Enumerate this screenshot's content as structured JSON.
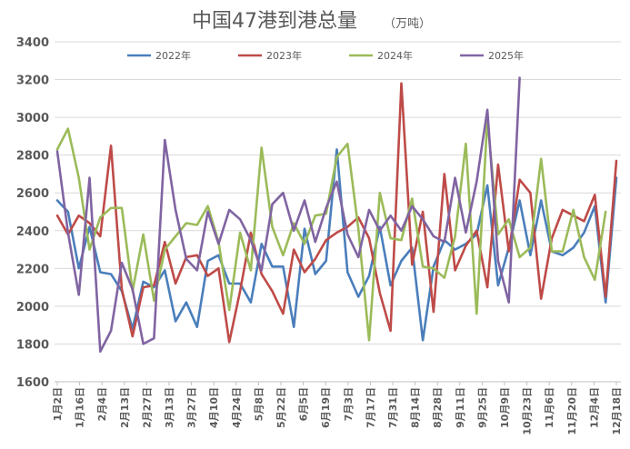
{
  "chart_data": {
    "type": "line",
    "title": "中国47港到港总量",
    "title_unit": "（万吨）",
    "xlabel": "",
    "ylabel": "",
    "ylim": [
      1600,
      3400
    ],
    "y_ticks": [
      1600,
      1800,
      2000,
      2200,
      2400,
      2600,
      2800,
      3000,
      3200,
      3400
    ],
    "grid": true,
    "legend_position": "top",
    "x_tick_labels": [
      "1月2日",
      "1月16日",
      "2月4日",
      "2月13日",
      "2月27日",
      "3月13日",
      "3月27日",
      "4月10日",
      "4月24日",
      "5月8日",
      "5月22日",
      "6月5日",
      "6月19日",
      "7月3日",
      "7月17日",
      "7月31日",
      "8月14日",
      "8月28日",
      "9月11日",
      "9月25日",
      "10月9日",
      "10月23日",
      "11月6日",
      "11月20日",
      "12月4日",
      "12月18日"
    ],
    "series": [
      {
        "name": "2022年",
        "color": "#4a7ebb",
        "values": [
          2560,
          2500,
          2200,
          2420,
          2180,
          2170,
          2080,
          1880,
          2130,
          2100,
          2190,
          1920,
          2020,
          1890,
          2240,
          2270,
          2120,
          2120,
          2020,
          2330,
          2210,
          2210,
          1890,
          2410,
          2170,
          2240,
          2830,
          2180,
          2050,
          2160,
          2420,
          2110,
          2240,
          2310,
          1820,
          2210,
          2350,
          2300,
          2330,
          2380,
          2640,
          2110,
          2310,
          2560,
          2270,
          2560,
          2290,
          2270,
          2310,
          2390,
          2530,
          2020,
          2680
        ]
      },
      {
        "name": "2023年",
        "color": "#be4b48",
        "values": [
          2480,
          2380,
          2480,
          2440,
          2370,
          2850,
          2090,
          1840,
          2100,
          2110,
          2340,
          2120,
          2260,
          2270,
          2160,
          2200,
          1810,
          2080,
          2390,
          2170,
          2080,
          1960,
          2300,
          2180,
          2250,
          2350,
          2390,
          2420,
          2470,
          2360,
          2070,
          1870,
          3180,
          2220,
          2500,
          1970,
          2700,
          2190,
          2320,
          2400,
          2100,
          2750,
          2290,
          2670,
          2600,
          2040,
          2360,
          2510,
          2480,
          2450,
          2590,
          2050,
          2770
        ]
      },
      {
        "name": "2024年",
        "color": "#9bbb59",
        "values": [
          2830,
          2940,
          2680,
          2300,
          2470,
          2520,
          2520,
          2080,
          2380,
          2030,
          2300,
          2370,
          2440,
          2430,
          2530,
          2340,
          1980,
          2390,
          2190,
          2840,
          2420,
          2270,
          2440,
          2330,
          2480,
          2490,
          2790,
          2860,
          2410,
          1820,
          2600,
          2360,
          2350,
          2570,
          2210,
          2200,
          2150,
          2370,
          2860,
          1960,
          2990,
          2380,
          2460,
          2260,
          2310,
          2780,
          2290,
          2290,
          2510,
          2260,
          2140,
          2500
        ]
      },
      {
        "name": "2025年",
        "color": "#8064a2",
        "values": [
          2820,
          2390,
          2060,
          2680,
          1760,
          1870,
          2230,
          2090,
          1800,
          1830,
          2880,
          2510,
          2250,
          2190,
          2500,
          2330,
          2510,
          2460,
          2350,
          2190,
          2540,
          2600,
          2400,
          2560,
          2340,
          2520,
          2660,
          2380,
          2260,
          2510,
          2400,
          2480,
          2400,
          2530,
          2460,
          2370,
          2340,
          2680,
          2390,
          2660,
          3040,
          2240,
          2020,
          3210
        ]
      }
    ]
  }
}
